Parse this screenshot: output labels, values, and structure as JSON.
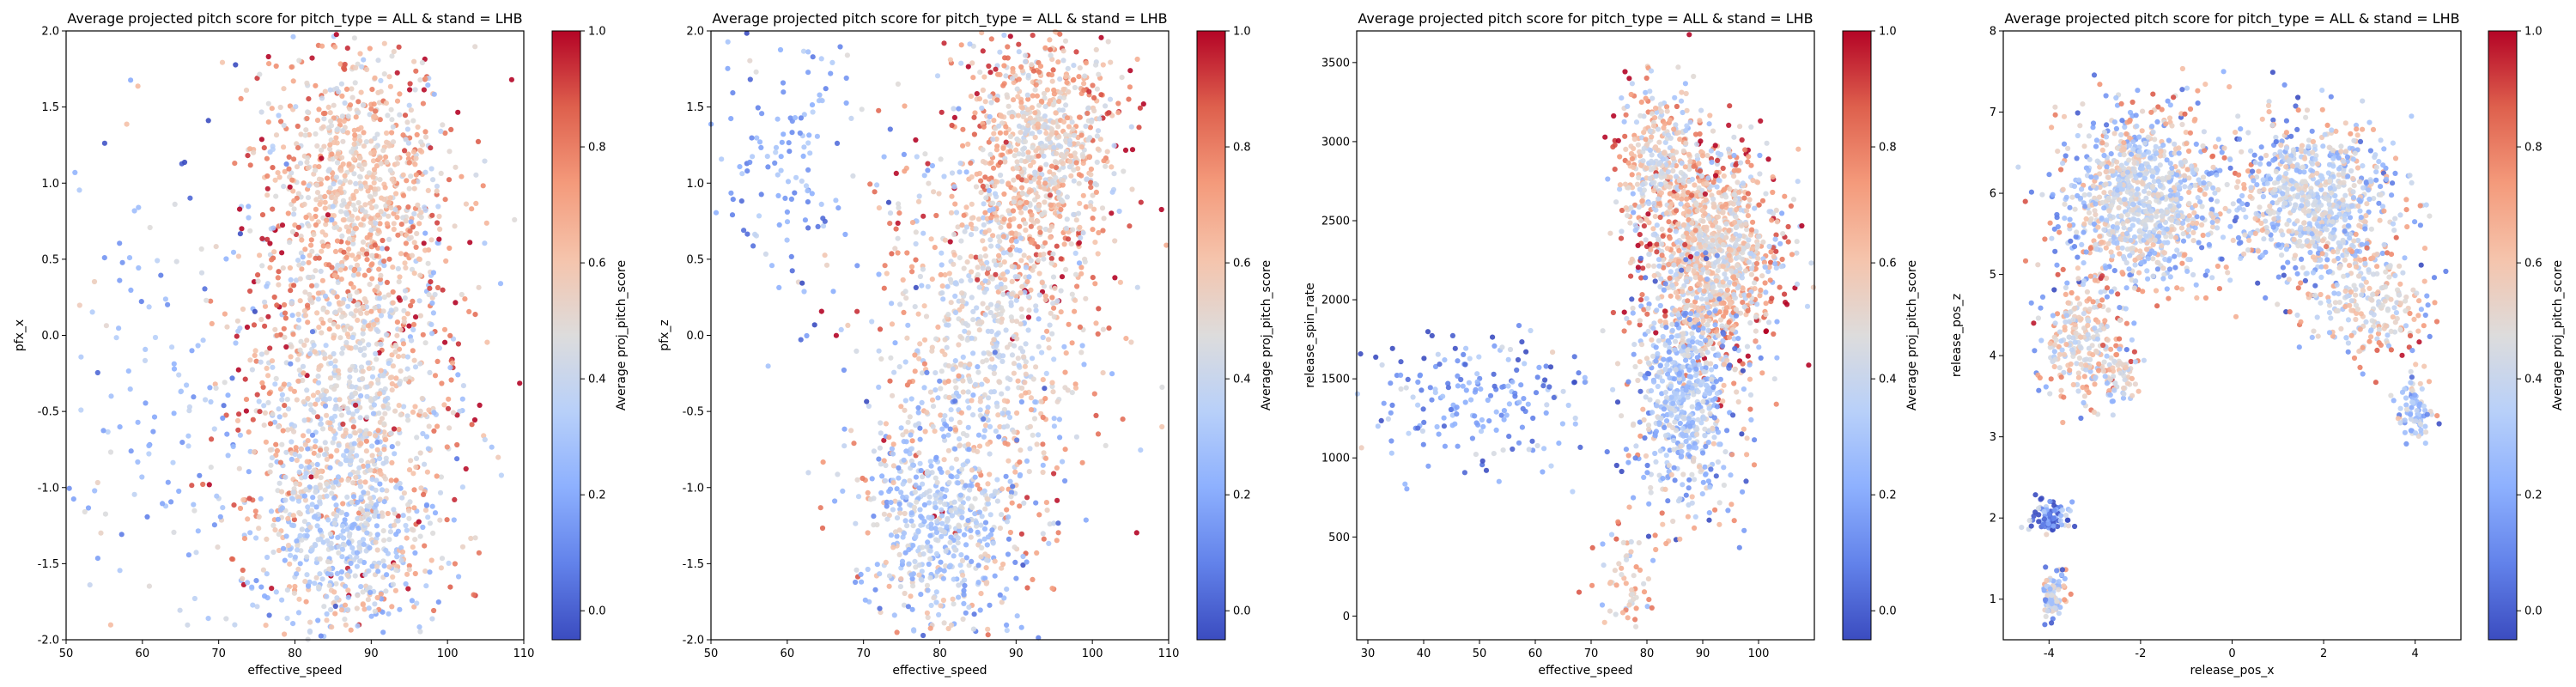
{
  "figure": {
    "background": "#ffffff"
  },
  "colormap": {
    "name": "coolwarm",
    "stops": [
      "#3b4cc0",
      "#6282ea",
      "#8db0fe",
      "#b8d0f9",
      "#dddcdc",
      "#f5c4ac",
      "#f49a7b",
      "#de604d",
      "#b40426"
    ]
  },
  "chart_data": [
    {
      "type": "scatter",
      "title": "Average projected pitch score for pitch_type = ALL & stand = LHB",
      "xlabel": "effective_speed",
      "ylabel": "pfx_x",
      "xlim": [
        50,
        110
      ],
      "ylim": [
        -2.0,
        2.0
      ],
      "xticks": [
        "50",
        "60",
        "70",
        "80",
        "90",
        "100",
        "110"
      ],
      "yticks": [
        "-2.0",
        "-1.5",
        "-1.0",
        "-0.5",
        "0.0",
        "0.5",
        "1.0",
        "1.5",
        "2.0"
      ],
      "colorbar": {
        "label": "Average proj_pitch_score",
        "vmin": -0.05,
        "vmax": 1.0,
        "ticks": [
          "0.0",
          "0.2",
          "0.4",
          "0.6",
          "0.8",
          "1.0"
        ]
      },
      "clusters": [
        {
          "cx": 87.5,
          "cy": 0.95,
          "sx": 6.5,
          "sy": 0.5,
          "n": 900,
          "color_center": 0.55,
          "color_edge": 0.7
        },
        {
          "cx": 87.5,
          "cy": -0.35,
          "sx": 7.0,
          "sy": 0.55,
          "n": 850,
          "color_center": 0.45,
          "color_edge": 0.65
        },
        {
          "cx": 86.0,
          "cy": -1.3,
          "sx": 6.5,
          "sy": 0.35,
          "n": 600,
          "color_center": 0.35,
          "color_edge": 0.55
        },
        {
          "cx": 63.0,
          "cy": -0.4,
          "sx": 7.0,
          "sy": 0.8,
          "n": 150,
          "color_center": 0.3,
          "color_edge": 0.3
        }
      ]
    },
    {
      "type": "scatter",
      "title": "Average projected pitch score for pitch_type = ALL & stand = LHB",
      "xlabel": "effective_speed",
      "ylabel": "pfx_z",
      "xlim": [
        50,
        110
      ],
      "ylim": [
        -2.0,
        2.0
      ],
      "xticks": [
        "50",
        "60",
        "70",
        "80",
        "90",
        "100",
        "110"
      ],
      "yticks": [
        "-2.0",
        "-1.5",
        "-1.0",
        "-0.5",
        "0.0",
        "0.5",
        "1.0",
        "1.5",
        "2.0"
      ],
      "colorbar": {
        "label": "Average proj_pitch_score",
        "vmin": -0.05,
        "vmax": 1.0,
        "ticks": [
          "0.0",
          "0.2",
          "0.4",
          "0.6",
          "0.8",
          "1.0"
        ]
      },
      "clusters": [
        {
          "cx": 93.0,
          "cy": 1.2,
          "sx": 5.5,
          "sy": 0.45,
          "n": 900,
          "color_center": 0.5,
          "color_edge": 0.75
        },
        {
          "cx": 86.0,
          "cy": 0.0,
          "sx": 7.0,
          "sy": 0.6,
          "n": 750,
          "color_center": 0.45,
          "color_edge": 0.6
        },
        {
          "cx": 80.0,
          "cy": -1.2,
          "sx": 5.5,
          "sy": 0.4,
          "n": 600,
          "color_center": 0.35,
          "color_edge": 0.45
        },
        {
          "cx": 60.0,
          "cy": 1.2,
          "sx": 6.0,
          "sy": 0.5,
          "n": 150,
          "color_center": 0.25,
          "color_edge": 0.3
        }
      ]
    },
    {
      "type": "scatter",
      "title": "Average projected pitch score for pitch_type = ALL & stand = LHB",
      "xlabel": "effective_speed",
      "ylabel": "release_spin_rate",
      "xlim": [
        28,
        110
      ],
      "ylim": [
        -150,
        3700
      ],
      "xticks": [
        "30",
        "40",
        "50",
        "60",
        "70",
        "80",
        "90",
        "100"
      ],
      "yticks": [
        "0",
        "500",
        "1000",
        "1500",
        "2000",
        "2500",
        "3000",
        "3500"
      ],
      "colorbar": {
        "label": "Average proj_pitch_score",
        "vmin": -0.05,
        "vmax": 1.0,
        "ticks": [
          "0.0",
          "0.2",
          "0.4",
          "0.6",
          "0.8",
          "1.0"
        ]
      },
      "clusters": [
        {
          "cx": 92.0,
          "cy": 2300,
          "sx": 6.0,
          "sy": 330,
          "n": 1100,
          "color_center": 0.5,
          "color_edge": 0.65
        },
        {
          "cx": 82.0,
          "cy": 2850,
          "sx": 4.0,
          "sy": 250,
          "n": 350,
          "color_center": 0.45,
          "color_edge": 0.7
        },
        {
          "cx": 87.0,
          "cy": 1400,
          "sx": 4.5,
          "sy": 380,
          "n": 650,
          "color_center": 0.35,
          "color_edge": 0.4
        },
        {
          "cx": 50.0,
          "cy": 1350,
          "sx": 10.0,
          "sy": 220,
          "n": 200,
          "color_center": 0.2,
          "color_edge": 0.25
        },
        {
          "cx": 76.0,
          "cy": 250,
          "sx": 3.0,
          "sy": 150,
          "n": 60,
          "color_center": 0.6,
          "color_edge": 0.6
        }
      ]
    },
    {
      "type": "scatter",
      "title": "Average projected pitch score for pitch_type = ALL & stand = LHB",
      "xlabel": "release_pos_x",
      "ylabel": "release_pos_z",
      "xlim": [
        -5,
        5
      ],
      "ylim": [
        0.5,
        8.0
      ],
      "xticks": [
        "-4",
        "-2",
        "0",
        "2",
        "4"
      ],
      "yticks": [
        "1",
        "2",
        "3",
        "4",
        "5",
        "6",
        "7",
        "8"
      ],
      "colorbar": {
        "label": "Average proj_pitch_score",
        "vmin": -0.05,
        "vmax": 1.0,
        "ticks": [
          "0.0",
          "0.2",
          "0.4",
          "0.6",
          "0.8",
          "1.0"
        ]
      },
      "clusters": [
        {
          "cx": -2.0,
          "cy": 5.9,
          "sx": 0.9,
          "sy": 0.55,
          "n": 1000,
          "color_center": 0.45,
          "color_edge": 0.45
        },
        {
          "cx": 1.8,
          "cy": 5.9,
          "sx": 0.9,
          "sy": 0.5,
          "n": 800,
          "color_center": 0.45,
          "color_edge": 0.4
        },
        {
          "cx": -3.3,
          "cy": 4.2,
          "sx": 0.45,
          "sy": 0.4,
          "n": 250,
          "color_center": 0.5,
          "color_edge": 0.55
        },
        {
          "cx": 3.0,
          "cy": 4.7,
          "sx": 0.7,
          "sy": 0.35,
          "n": 250,
          "color_center": 0.5,
          "color_edge": 0.55
        },
        {
          "cx": -4.0,
          "cy": 2.0,
          "sx": 0.2,
          "sy": 0.1,
          "n": 90,
          "color_center": 0.15,
          "color_edge": 0.2
        },
        {
          "cx": -3.9,
          "cy": 1.05,
          "sx": 0.12,
          "sy": 0.18,
          "n": 90,
          "color_center": 0.45,
          "color_edge": 0.4
        },
        {
          "cx": 4.0,
          "cy": 3.3,
          "sx": 0.2,
          "sy": 0.2,
          "n": 80,
          "color_center": 0.35,
          "color_edge": 0.35
        },
        {
          "cx": -2.4,
          "cy": 3.7,
          "sx": 0.2,
          "sy": 0.2,
          "n": 60,
          "color_center": 0.5,
          "color_edge": 0.5
        }
      ]
    }
  ]
}
